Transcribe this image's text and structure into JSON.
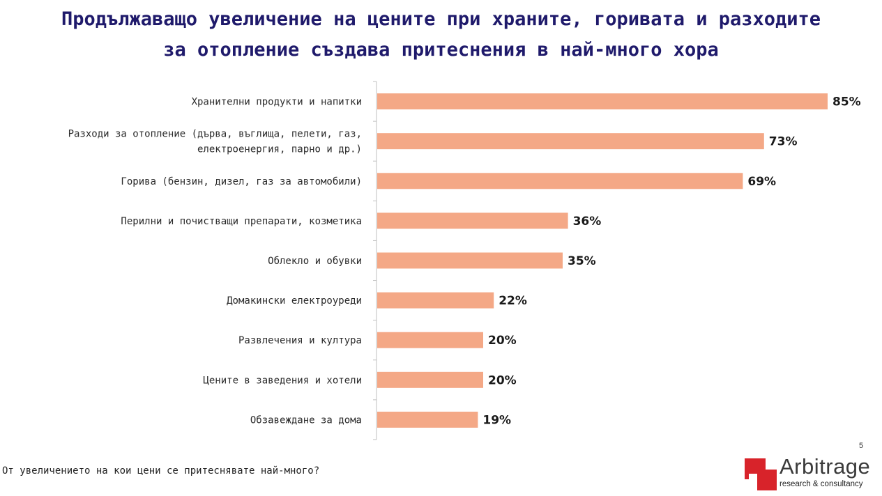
{
  "title": {
    "line1": "Продължаващо увеличение на цените при храните, горивата и разходите",
    "line2": "за отопление създава притеснения в най-много хора"
  },
  "chart_data": {
    "type": "bar",
    "orientation": "horizontal",
    "categories": [
      [
        "Хранителни продукти и напитки"
      ],
      [
        "Разходи за отопление (дърва, въглища, пелети, газ,",
        "електроенергия, парно и др.)"
      ],
      [
        "Горива (бензин, дизел, газ за автомобили)"
      ],
      [
        "Перилни и почистващи препарати, козметика"
      ],
      [
        "Облекло и обувки"
      ],
      [
        "Домакински електроуреди"
      ],
      [
        "Развлечения и култура"
      ],
      [
        "Цените в заведения и хотели"
      ],
      [
        "Обзавеждане за дома"
      ]
    ],
    "values": [
      85,
      73,
      69,
      36,
      35,
      22,
      20,
      20,
      19
    ],
    "value_labels": [
      "85%",
      "73%",
      "69%",
      "36%",
      "35%",
      "22%",
      "20%",
      "20%",
      "19%"
    ],
    "xlim": [
      0,
      100
    ],
    "bar_color": "#f4a886",
    "grid": false
  },
  "footer": {
    "question": "От увеличението на кои цени се притеснявате най-много?",
    "page_number": "5"
  },
  "logo": {
    "name": "Arbitrage",
    "subtitle": "research & consultancy"
  }
}
